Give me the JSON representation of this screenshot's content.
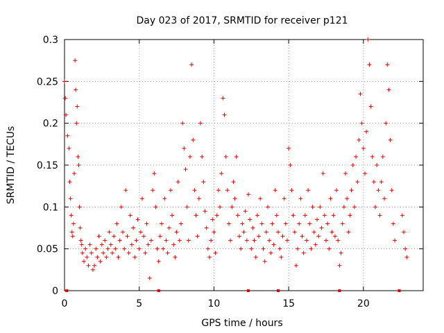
{
  "chart_data": {
    "type": "scatter",
    "title": "Day 023 of 2017, SRMTID for receiver p121",
    "xlabel": "GPS time / hours",
    "ylabel": "SRMTID / TECUs",
    "xlim": [
      0,
      24
    ],
    "ylim": [
      0,
      0.3
    ],
    "x_ticks": [
      0,
      5,
      10,
      15,
      20
    ],
    "x_tick_labels": [
      "0",
      "5",
      "10",
      "15",
      "20"
    ],
    "y_ticks": [
      0,
      0.05,
      0.1,
      0.15,
      0.2,
      0.25,
      0.3
    ],
    "y_tick_labels": [
      "0",
      "0.05",
      "0.1",
      "0.15",
      "0.2",
      "0.25",
      "0.3"
    ],
    "grid": true,
    "marker": "+",
    "color": "#e60000",
    "series": [
      {
        "name": "SRMTID",
        "points": [
          [
            0.0,
            0.25
          ],
          [
            0.05,
            0.23
          ],
          [
            0.1,
            0.21
          ],
          [
            0.2,
            0.185
          ],
          [
            0.3,
            0.17
          ],
          [
            0.35,
            0.13
          ],
          [
            0.4,
            0.11
          ],
          [
            0.45,
            0.09
          ],
          [
            0.5,
            0.07
          ],
          [
            0.55,
            0.065
          ],
          [
            0.6,
            0.08
          ],
          [
            0.65,
            0.14
          ],
          [
            0.7,
            0.275
          ],
          [
            0.75,
            0.24
          ],
          [
            0.8,
            0.2
          ],
          [
            0.85,
            0.22
          ],
          [
            0.9,
            0.16
          ],
          [
            0.95,
            0.15
          ],
          [
            1.0,
            0.1
          ],
          [
            1.05,
            0.075
          ],
          [
            1.1,
            0.06
          ],
          [
            1.15,
            0.055
          ],
          [
            1.2,
            0.045
          ],
          [
            1.3,
            0.035
          ],
          [
            1.4,
            0.05
          ],
          [
            1.5,
            0.04
          ],
          [
            1.6,
            0.03
          ],
          [
            1.7,
            0.055
          ],
          [
            1.8,
            0.045
          ],
          [
            1.9,
            0.025
          ],
          [
            2.0,
            0.03
          ],
          [
            2.1,
            0.05
          ],
          [
            2.2,
            0.04
          ],
          [
            2.3,
            0.065
          ],
          [
            2.4,
            0.035
          ],
          [
            2.5,
            0.055
          ],
          [
            2.6,
            0.045
          ],
          [
            2.7,
            0.06
          ],
          [
            2.8,
            0.04
          ],
          [
            2.9,
            0.05
          ],
          [
            3.0,
            0.07
          ],
          [
            3.1,
            0.055
          ],
          [
            3.2,
            0.045
          ],
          [
            3.3,
            0.065
          ],
          [
            3.4,
            0.05
          ],
          [
            3.5,
            0.08
          ],
          [
            3.6,
            0.04
          ],
          [
            3.7,
            0.06
          ],
          [
            3.8,
            0.1
          ],
          [
            3.9,
            0.07
          ],
          [
            4.0,
            0.05
          ],
          [
            4.1,
            0.12
          ],
          [
            4.2,
            0.065
          ],
          [
            4.3,
            0.045
          ],
          [
            4.4,
            0.09
          ],
          [
            4.5,
            0.055
          ],
          [
            4.6,
            0.075
          ],
          [
            4.7,
            0.04
          ],
          [
            4.8,
            0.06
          ],
          [
            4.9,
            0.085
          ],
          [
            5.0,
            0.05
          ],
          [
            5.1,
            0.07
          ],
          [
            5.2,
            0.11
          ],
          [
            5.3,
            0.065
          ],
          [
            5.4,
            0.045
          ],
          [
            5.5,
            0.08
          ],
          [
            5.6,
            0.055
          ],
          [
            5.7,
            0.015
          ],
          [
            5.8,
            0.06
          ],
          [
            5.9,
            0.12
          ],
          [
            6.0,
            0.14
          ],
          [
            6.1,
            0.1
          ],
          [
            6.2,
            0.05
          ],
          [
            6.3,
            0.035
          ],
          [
            6.4,
            0.065
          ],
          [
            6.5,
            0.08
          ],
          [
            6.6,
            0.05
          ],
          [
            6.7,
            0.11
          ],
          [
            6.8,
            0.06
          ],
          [
            6.9,
            0.045
          ],
          [
            7.0,
            0.075
          ],
          [
            7.1,
            0.12
          ],
          [
            7.2,
            0.09
          ],
          [
            7.3,
            0.055
          ],
          [
            7.4,
            0.04
          ],
          [
            7.5,
            0.07
          ],
          [
            7.6,
            0.13
          ],
          [
            7.7,
            0.06
          ],
          [
            7.8,
            0.08
          ],
          [
            7.9,
            0.2
          ],
          [
            8.0,
            0.17
          ],
          [
            8.1,
            0.145
          ],
          [
            8.2,
            0.1
          ],
          [
            8.3,
            0.06
          ],
          [
            8.4,
            0.16
          ],
          [
            8.5,
            0.27
          ],
          [
            8.6,
            0.18
          ],
          [
            8.7,
            0.12
          ],
          [
            8.8,
            0.09
          ],
          [
            8.9,
            0.065
          ],
          [
            9.0,
            0.11
          ],
          [
            9.1,
            0.2
          ],
          [
            9.2,
            0.16
          ],
          [
            9.3,
            0.13
          ],
          [
            9.4,
            0.095
          ],
          [
            9.5,
            0.075
          ],
          [
            9.6,
            0.05
          ],
          [
            9.7,
            0.04
          ],
          [
            9.8,
            0.06
          ],
          [
            9.9,
            0.085
          ],
          [
            10.0,
            0.07
          ],
          [
            10.1,
            0.045
          ],
          [
            10.2,
            0.09
          ],
          [
            10.3,
            0.12
          ],
          [
            10.4,
            0.1
          ],
          [
            10.5,
            0.14
          ],
          [
            10.6,
            0.23
          ],
          [
            10.7,
            0.21
          ],
          [
            10.8,
            0.16
          ],
          [
            10.9,
            0.12
          ],
          [
            11.0,
            0.08
          ],
          [
            11.1,
            0.06
          ],
          [
            11.2,
            0.1
          ],
          [
            11.3,
            0.13
          ],
          [
            11.4,
            0.11
          ],
          [
            11.5,
            0.16
          ],
          [
            11.6,
            0.09
          ],
          [
            11.7,
            0.065
          ],
          [
            11.8,
            0.05
          ],
          [
            11.9,
            0.08
          ],
          [
            12.0,
            0.07
          ],
          [
            12.1,
            0.095
          ],
          [
            12.2,
            0.06
          ],
          [
            12.3,
            0.115
          ],
          [
            12.4,
            0.085
          ],
          [
            12.5,
            0.05
          ],
          [
            12.6,
            0.075
          ],
          [
            12.7,
            0.06
          ],
          [
            12.8,
            0.04
          ],
          [
            12.9,
            0.09
          ],
          [
            13.0,
            0.065
          ],
          [
            13.1,
            0.11
          ],
          [
            13.2,
            0.08
          ],
          [
            13.3,
            0.05
          ],
          [
            13.4,
            0.035
          ],
          [
            13.5,
            0.07
          ],
          [
            13.6,
            0.1
          ],
          [
            13.7,
            0.06
          ],
          [
            13.8,
            0.045
          ],
          [
            13.9,
            0.08
          ],
          [
            14.0,
            0.055
          ],
          [
            14.1,
            0.12
          ],
          [
            14.2,
            0.09
          ],
          [
            14.3,
            0.07
          ],
          [
            14.4,
            0.05
          ],
          [
            14.5,
            0.04
          ],
          [
            14.6,
            0.065
          ],
          [
            14.7,
            0.11
          ],
          [
            14.8,
            0.08
          ],
          [
            14.9,
            0.06
          ],
          [
            15.0,
            0.17
          ],
          [
            15.1,
            0.15
          ],
          [
            15.2,
            0.12
          ],
          [
            15.3,
            0.09
          ],
          [
            15.4,
            0.07
          ],
          [
            15.5,
            0.03
          ],
          [
            15.6,
            0.05
          ],
          [
            15.7,
            0.08
          ],
          [
            15.8,
            0.11
          ],
          [
            15.9,
            0.065
          ],
          [
            16.0,
            0.045
          ],
          [
            16.1,
            0.09
          ],
          [
            16.2,
            0.06
          ],
          [
            16.3,
            0.12
          ],
          [
            16.4,
            0.08
          ],
          [
            16.5,
            0.05
          ],
          [
            16.6,
            0.1
          ],
          [
            16.7,
            0.07
          ],
          [
            16.8,
            0.055
          ],
          [
            16.9,
            0.085
          ],
          [
            17.0,
            0.065
          ],
          [
            17.1,
            0.1
          ],
          [
            17.2,
            0.075
          ],
          [
            17.3,
            0.14
          ],
          [
            17.4,
            0.09
          ],
          [
            17.5,
            0.06
          ],
          [
            17.6,
            0.08
          ],
          [
            17.7,
            0.05
          ],
          [
            17.8,
            0.11
          ],
          [
            17.9,
            0.07
          ],
          [
            18.0,
            0.09
          ],
          [
            18.1,
            0.065
          ],
          [
            18.2,
            0.12
          ],
          [
            18.3,
            0.06
          ],
          [
            18.4,
            0.03
          ],
          [
            18.5,
            0.045
          ],
          [
            18.6,
            0.08
          ],
          [
            18.7,
            0.1
          ],
          [
            18.8,
            0.14
          ],
          [
            18.9,
            0.11
          ],
          [
            19.0,
            0.07
          ],
          [
            19.1,
            0.09
          ],
          [
            19.2,
            0.12
          ],
          [
            19.3,
            0.15
          ],
          [
            19.4,
            0.1
          ],
          [
            19.5,
            0.16
          ],
          [
            19.6,
            0.13
          ],
          [
            19.7,
            0.18
          ],
          [
            19.8,
            0.235
          ],
          [
            19.9,
            0.2
          ],
          [
            20.0,
            0.17
          ],
          [
            20.1,
            0.14
          ],
          [
            20.2,
            0.19
          ],
          [
            20.3,
            0.3
          ],
          [
            20.4,
            0.27
          ],
          [
            20.5,
            0.22
          ],
          [
            20.6,
            0.16
          ],
          [
            20.7,
            0.13
          ],
          [
            20.8,
            0.1
          ],
          [
            20.9,
            0.15
          ],
          [
            21.0,
            0.12
          ],
          [
            21.1,
            0.09
          ],
          [
            21.2,
            0.13
          ],
          [
            21.3,
            0.16
          ],
          [
            21.4,
            0.11
          ],
          [
            21.5,
            0.2
          ],
          [
            21.6,
            0.27
          ],
          [
            21.7,
            0.24
          ],
          [
            21.8,
            0.18
          ],
          [
            21.9,
            0.12
          ],
          [
            22.0,
            0.08
          ],
          [
            22.1,
            0.06
          ],
          [
            22.6,
            0.09
          ],
          [
            22.7,
            0.07
          ],
          [
            22.8,
            0.05
          ],
          [
            22.9,
            0.04
          ]
        ]
      }
    ],
    "axis_markers_x": [
      0.15,
      6.3,
      12.3,
      14.3,
      18.4,
      22.4
    ]
  }
}
